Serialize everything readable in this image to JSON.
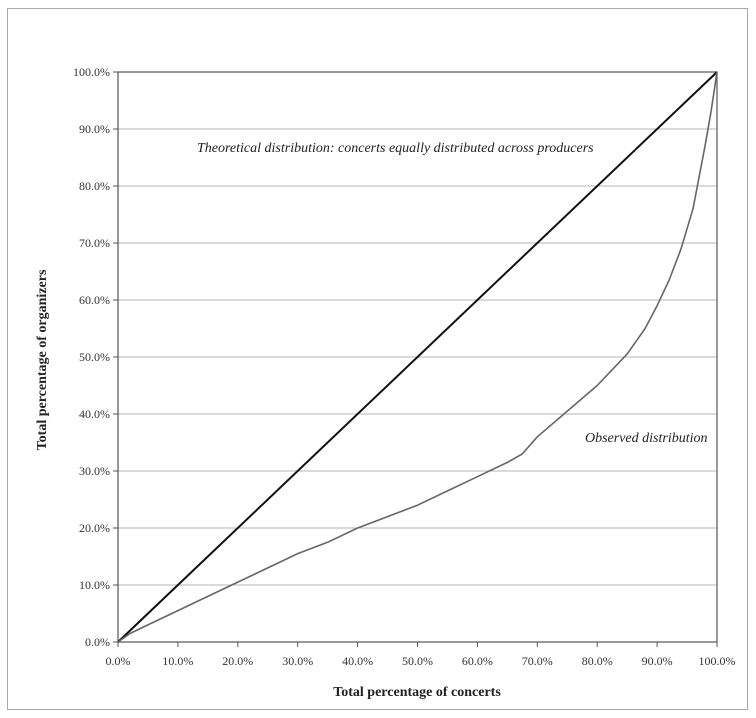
{
  "chart_data": {
    "type": "line",
    "xlabel": "Total percentage of concerts",
    "ylabel": "Total percentage of organizers",
    "xlim": [
      0,
      100
    ],
    "ylim": [
      0,
      100
    ],
    "x_ticks": [
      "0.0%",
      "10.0%",
      "20.0%",
      "30.0%",
      "40.0%",
      "50.0%",
      "60.0%",
      "70.0%",
      "80.0%",
      "90.0%",
      "100.0%"
    ],
    "y_ticks": [
      "0.0%",
      "10.0%",
      "20.0%",
      "30.0%",
      "40.0%",
      "50.0%",
      "60.0%",
      "70.0%",
      "80.0%",
      "90.0%",
      "100.0%"
    ],
    "grid": "horizontal",
    "series": [
      {
        "name": "Theoretical distribution: concerts equally distributed across producers",
        "color": "#111111",
        "x": [
          0,
          100
        ],
        "y": [
          0,
          100
        ]
      },
      {
        "name": "Observed distribution",
        "color": "#666666",
        "x": [
          0,
          2,
          5,
          10,
          15,
          20,
          25,
          30,
          35,
          40,
          45,
          50,
          55,
          60,
          65,
          67.5,
          70,
          75,
          80,
          85,
          88,
          90,
          92,
          94,
          96,
          98,
          99,
          100
        ],
        "y": [
          0,
          1.5,
          3,
          5.5,
          8,
          10.5,
          13,
          15.5,
          17.5,
          20,
          22,
          24,
          26.5,
          29,
          31.5,
          33,
          36,
          40.5,
          45,
          50.5,
          55,
          59,
          63.5,
          69,
          76,
          87,
          93,
          100
        ]
      }
    ],
    "annotations": [
      "Theoretical distribution: concerts equally distributed across producers",
      "Observed distribution"
    ]
  }
}
